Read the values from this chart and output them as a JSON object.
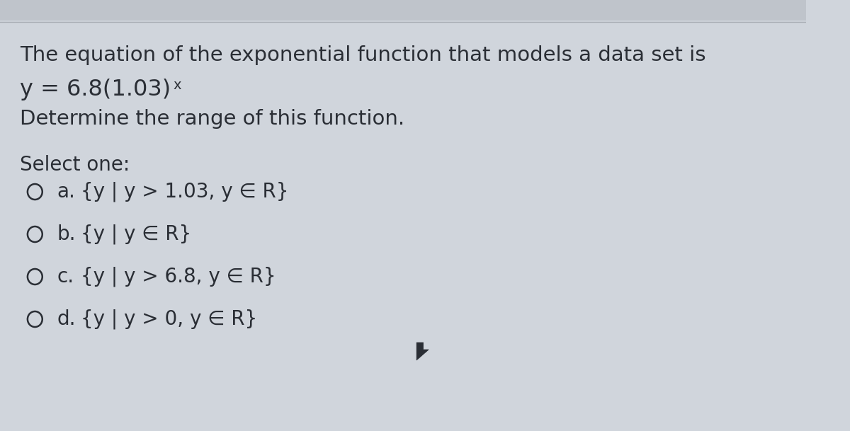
{
  "bg_color": "#d0d5dc",
  "text_color": "#2a2e35",
  "top_bar_color": "#c8cdd3",
  "line1": "The equation of the exponential function that models a data set is",
  "line2_prefix": "y = 6.8(1.03)",
  "line2_super": "x",
  "line3": "Determine the range of this function.",
  "select_label": "Select one:",
  "options": [
    {
      "letter": "a.",
      "text": "{y | y > 1.03, y ∈ R}"
    },
    {
      "letter": "b.",
      "text": "{y | y ∈ R}"
    },
    {
      "letter": "c.",
      "text": "{y | y > 6.8, y ∈ R}"
    },
    {
      "letter": "d.",
      "text": "{y | y > 0, y ∈ R}"
    }
  ],
  "font_size_title": 21,
  "font_size_eq": 23,
  "font_size_options": 20,
  "font_size_select": 20,
  "font_size_super": 14
}
